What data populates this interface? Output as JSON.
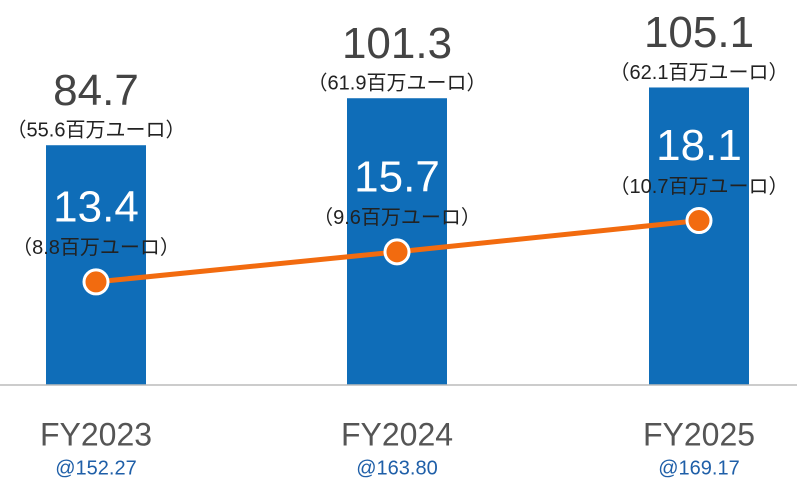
{
  "chart_data": {
    "type": "bar-line",
    "categories": [
      "FY2023",
      "FY2024",
      "FY2025"
    ],
    "category_notes": [
      "@152.27",
      "@163.80",
      "@169.17"
    ],
    "ylim": [
      0,
      136
    ],
    "y2lim": [
      5.5,
      35
    ],
    "series": [
      {
        "type": "bar",
        "color": "#0f6db8",
        "values": [
          84.7,
          101.3,
          105.1
        ],
        "notes": [
          "（55.6百万ユーロ）",
          "（61.9百万ユーロ）",
          "（62.1百万ユーロ）"
        ]
      },
      {
        "type": "line",
        "axis": "y2",
        "color": "#f26b0f",
        "values": [
          13.4,
          15.7,
          18.1
        ],
        "notes": [
          "（8.8百万ユーロ）",
          "（9.6百万ユーロ）",
          "（10.7百万ユーロ）"
        ]
      }
    ]
  }
}
